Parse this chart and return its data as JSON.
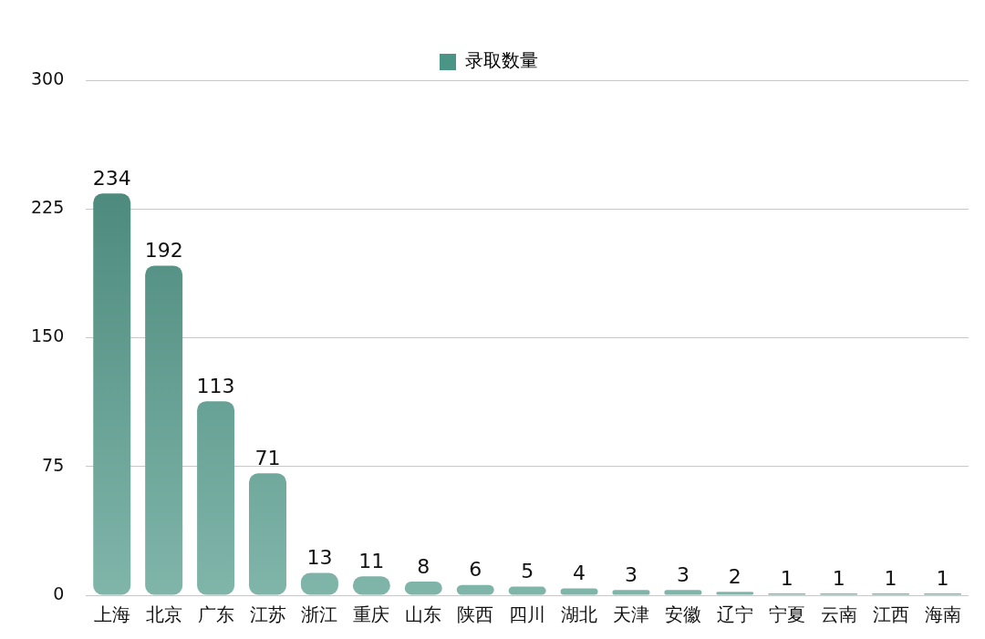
{
  "chart_data": {
    "type": "bar",
    "categories": [
      "上海",
      "北京",
      "广东",
      "江苏",
      "浙江",
      "重庆",
      "山东",
      "陕西",
      "四川",
      "湖北",
      "天津",
      "安徽",
      "辽宁",
      "宁夏",
      "云南",
      "江西",
      "海南"
    ],
    "series": [
      {
        "name": "录取数量",
        "color": "#4a9585",
        "values": [
          234,
          192,
          113,
          71,
          13,
          11,
          8,
          6,
          5,
          4,
          3,
          3,
          2,
          1,
          1,
          1,
          1
        ]
      }
    ],
    "ylim": [
      0,
      300
    ],
    "yticks": [
      0,
      75,
      150,
      225,
      300
    ],
    "grid": "y",
    "legend": "top",
    "data_labels": true
  }
}
